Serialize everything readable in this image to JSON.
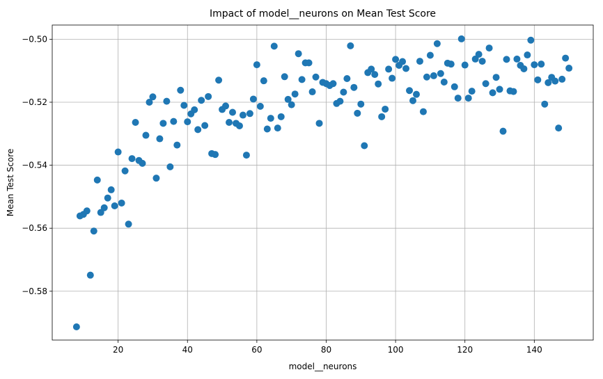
{
  "chart_data": {
    "type": "scatter",
    "title": "Impact of model__neurons on Mean Test Score",
    "xlabel": "model__neurons",
    "ylabel": "Mean Test Score",
    "xlim": [
      1,
      157
    ],
    "ylim": [
      -0.5955,
      -0.4955
    ],
    "xticks": [
      20,
      40,
      60,
      80,
      100,
      120,
      140
    ],
    "xtick_labels": [
      "20",
      "40",
      "60",
      "80",
      "100",
      "120",
      "140"
    ],
    "yticks": [
      -0.58,
      -0.56,
      -0.54,
      -0.52,
      -0.5
    ],
    "ytick_labels": [
      "−0.58",
      "−0.56",
      "−0.54",
      "−0.52",
      "−0.50"
    ],
    "grid": true,
    "legend": "none",
    "marker_color": "#1f77b4",
    "points": [
      [
        8,
        -0.5913
      ],
      [
        9,
        -0.5561
      ],
      [
        10,
        -0.5556
      ],
      [
        11,
        -0.5545
      ],
      [
        12,
        -0.5749
      ],
      [
        13,
        -0.5609
      ],
      [
        14,
        -0.5447
      ],
      [
        15,
        -0.555
      ],
      [
        16,
        -0.5535
      ],
      [
        17,
        -0.5504
      ],
      [
        18,
        -0.5478
      ],
      [
        19,
        -0.5529
      ],
      [
        20,
        -0.5358
      ],
      [
        21,
        -0.552
      ],
      [
        22,
        -0.5418
      ],
      [
        23,
        -0.5587
      ],
      [
        24,
        -0.5379
      ],
      [
        25,
        -0.5264
      ],
      [
        26,
        -0.5385
      ],
      [
        27,
        -0.5394
      ],
      [
        28,
        -0.5305
      ],
      [
        29,
        -0.52
      ],
      [
        30,
        -0.5183
      ],
      [
        31,
        -0.5441
      ],
      [
        32,
        -0.5316
      ],
      [
        33,
        -0.5267
      ],
      [
        34,
        -0.5197
      ],
      [
        35,
        -0.5405
      ],
      [
        36,
        -0.5261
      ],
      [
        37,
        -0.5336
      ],
      [
        38,
        -0.5162
      ],
      [
        39,
        -0.521
      ],
      [
        40,
        -0.5262
      ],
      [
        41,
        -0.5237
      ],
      [
        42,
        -0.5224
      ],
      [
        43,
        -0.5287
      ],
      [
        44,
        -0.5194
      ],
      [
        45,
        -0.5274
      ],
      [
        46,
        -0.5182
      ],
      [
        47,
        -0.5363
      ],
      [
        48,
        -0.5366
      ],
      [
        49,
        -0.513
      ],
      [
        50,
        -0.5223
      ],
      [
        51,
        -0.5212
      ],
      [
        52,
        -0.5264
      ],
      [
        53,
        -0.5232
      ],
      [
        54,
        -0.5267
      ],
      [
        55,
        -0.5275
      ],
      [
        56,
        -0.5241
      ],
      [
        57,
        -0.5368
      ],
      [
        58,
        -0.5236
      ],
      [
        59,
        -0.519
      ],
      [
        60,
        -0.5081
      ],
      [
        61,
        -0.5213
      ],
      [
        62,
        -0.5132
      ],
      [
        63,
        -0.5285
      ],
      [
        64,
        -0.5251
      ],
      [
        65,
        -0.5022
      ],
      [
        66,
        -0.5282
      ],
      [
        67,
        -0.5246
      ],
      [
        68,
        -0.5119
      ],
      [
        69,
        -0.5191
      ],
      [
        70,
        -0.5208
      ],
      [
        71,
        -0.5174
      ],
      [
        72,
        -0.5046
      ],
      [
        73,
        -0.5128
      ],
      [
        74,
        -0.5075
      ],
      [
        75,
        -0.5075
      ],
      [
        76,
        -0.5167
      ],
      [
        77,
        -0.512
      ],
      [
        78,
        -0.5267
      ],
      [
        79,
        -0.5137
      ],
      [
        80,
        -0.5141
      ],
      [
        81,
        -0.5147
      ],
      [
        82,
        -0.5141
      ],
      [
        83,
        -0.5204
      ],
      [
        84,
        -0.5197
      ],
      [
        85,
        -0.5168
      ],
      [
        86,
        -0.5125
      ],
      [
        87,
        -0.5021
      ],
      [
        88,
        -0.5153
      ],
      [
        89,
        -0.5235
      ],
      [
        90,
        -0.5206
      ],
      [
        91,
        -0.5338
      ],
      [
        92,
        -0.5106
      ],
      [
        93,
        -0.5095
      ],
      [
        94,
        -0.5112
      ],
      [
        95,
        -0.5142
      ],
      [
        96,
        -0.5246
      ],
      [
        97,
        -0.5222
      ],
      [
        98,
        -0.5095
      ],
      [
        99,
        -0.5124
      ],
      [
        100,
        -0.5064
      ],
      [
        101,
        -0.5083
      ],
      [
        102,
        -0.5071
      ],
      [
        103,
        -0.5093
      ],
      [
        104,
        -0.5163
      ],
      [
        105,
        -0.5195
      ],
      [
        106,
        -0.5175
      ],
      [
        107,
        -0.507
      ],
      [
        108,
        -0.523
      ],
      [
        109,
        -0.512
      ],
      [
        110,
        -0.5051
      ],
      [
        111,
        -0.5116
      ],
      [
        112,
        -0.5014
      ],
      [
        113,
        -0.5109
      ],
      [
        114,
        -0.5136
      ],
      [
        115,
        -0.5076
      ],
      [
        116,
        -0.5079
      ],
      [
        117,
        -0.5151
      ],
      [
        118,
        -0.5187
      ],
      [
        119,
        -0.4999
      ],
      [
        120,
        -0.5082
      ],
      [
        121,
        -0.5187
      ],
      [
        122,
        -0.5165
      ],
      [
        123,
        -0.5063
      ],
      [
        124,
        -0.5048
      ],
      [
        125,
        -0.507
      ],
      [
        126,
        -0.5141
      ],
      [
        127,
        -0.5028
      ],
      [
        128,
        -0.517
      ],
      [
        129,
        -0.5121
      ],
      [
        130,
        -0.5159
      ],
      [
        131,
        -0.5292
      ],
      [
        132,
        -0.5064
      ],
      [
        133,
        -0.5164
      ],
      [
        134,
        -0.5166
      ],
      [
        135,
        -0.5063
      ],
      [
        136,
        -0.5083
      ],
      [
        137,
        -0.5094
      ],
      [
        138,
        -0.505
      ],
      [
        139,
        -0.5003
      ],
      [
        140,
        -0.5081
      ],
      [
        141,
        -0.5129
      ],
      [
        142,
        -0.5079
      ],
      [
        143,
        -0.5206
      ],
      [
        144,
        -0.5138
      ],
      [
        145,
        -0.5121
      ],
      [
        146,
        -0.5133
      ],
      [
        147,
        -0.5282
      ],
      [
        148,
        -0.5127
      ],
      [
        149,
        -0.506
      ],
      [
        150,
        -0.5092
      ]
    ]
  }
}
